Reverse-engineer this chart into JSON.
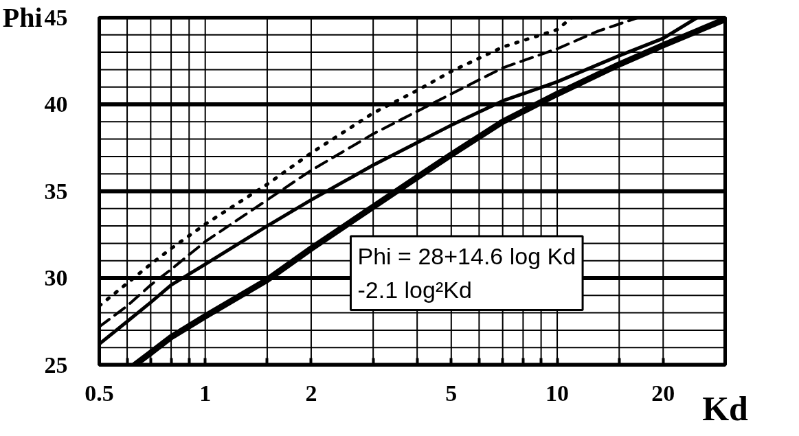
{
  "chart_data": {
    "type": "line",
    "xlabel": "Kd",
    "ylabel": "Phi",
    "log": "x",
    "grid": true,
    "marker": "none",
    "annotations": [
      "Phi = 28+14.6 log Kd\n-2.1 log²Kd"
    ],
    "xlim": [
      0.5,
      30
    ],
    "ylim": [
      25,
      45
    ],
    "xticks": [
      0.5,
      {
        "value": 0.6,
        "label": null
      },
      {
        "value": 0.7,
        "label": null
      },
      {
        "value": 0.8,
        "label": null
      },
      {
        "value": 0.9,
        "label": null
      },
      1,
      {
        "value": 1.5,
        "label": null
      },
      2,
      {
        "value": 3,
        "label": null
      },
      {
        "value": 4,
        "label": null
      },
      5,
      {
        "value": 6,
        "label": null
      },
      {
        "value": 7,
        "label": null
      },
      {
        "value": 8,
        "label": null
      },
      {
        "value": 9,
        "label": null
      },
      10,
      {
        "value": 15,
        "label": null
      },
      20
    ],
    "yticks": [
      25,
      {
        "value": 26,
        "label": null
      },
      {
        "value": 27,
        "label": null
      },
      {
        "value": 28,
        "label": null
      },
      {
        "value": 29,
        "label": null
      },
      30,
      {
        "value": 31,
        "label": null
      },
      {
        "value": 32,
        "label": null
      },
      {
        "value": 33,
        "label": null
      },
      {
        "value": 34,
        "label": null
      },
      35,
      {
        "value": 36,
        "label": null
      },
      {
        "value": 37,
        "label": null
      },
      {
        "value": 38,
        "label": null
      },
      {
        "value": 39,
        "label": null
      },
      40,
      {
        "value": 41,
        "label": null
      },
      {
        "value": 42,
        "label": null
      },
      {
        "value": 43,
        "label": null
      },
      {
        "value": 44,
        "label": null
      },
      45
    ],
    "series": [
      {
        "color": "#000000",
        "line_style": "solid",
        "x": [
          0.63,
          0.7,
          0.8,
          1,
          1.5,
          2,
          3,
          4,
          5,
          7,
          10,
          15,
          20,
          30
        ],
        "values": [
          25,
          25.7,
          26.6,
          27.8,
          29.9,
          31.7,
          34.1,
          35.8,
          37.1,
          39,
          40.6,
          42.3,
          43.4,
          44.9
        ]
      },
      {
        "color": "#000000",
        "line_style": "solid",
        "x": [
          0.5,
          0.6,
          0.7,
          0.8,
          1,
          1.5,
          2,
          3,
          4,
          5,
          7,
          10,
          15,
          20,
          25
        ],
        "values": [
          26.2,
          27.5,
          28.6,
          29.6,
          30.8,
          33,
          34.5,
          36.5,
          37.8,
          38.8,
          40.2,
          41.3,
          42.8,
          43.8,
          45
        ]
      },
      {
        "color": "#000000",
        "line_style": "dashed",
        "x": [
          0.5,
          0.6,
          0.7,
          0.8,
          1,
          1.5,
          2,
          3,
          4,
          5,
          7,
          10,
          13,
          17
        ],
        "values": [
          27.2,
          28.4,
          29.6,
          30.5,
          32.1,
          34.5,
          36.2,
          38.3,
          39.6,
          40.6,
          42.1,
          43.2,
          44.2,
          45
        ]
      },
      {
        "color": "#000000",
        "line_style": "dotted",
        "x": [
          0.5,
          0.6,
          0.7,
          0.8,
          1,
          1.5,
          2,
          3,
          4,
          5,
          7,
          10,
          11
        ],
        "values": [
          28.4,
          29.7,
          30.8,
          31.7,
          33.1,
          35.4,
          37.2,
          39.5,
          40.8,
          41.9,
          43.3,
          44.3,
          45
        ]
      }
    ]
  }
}
